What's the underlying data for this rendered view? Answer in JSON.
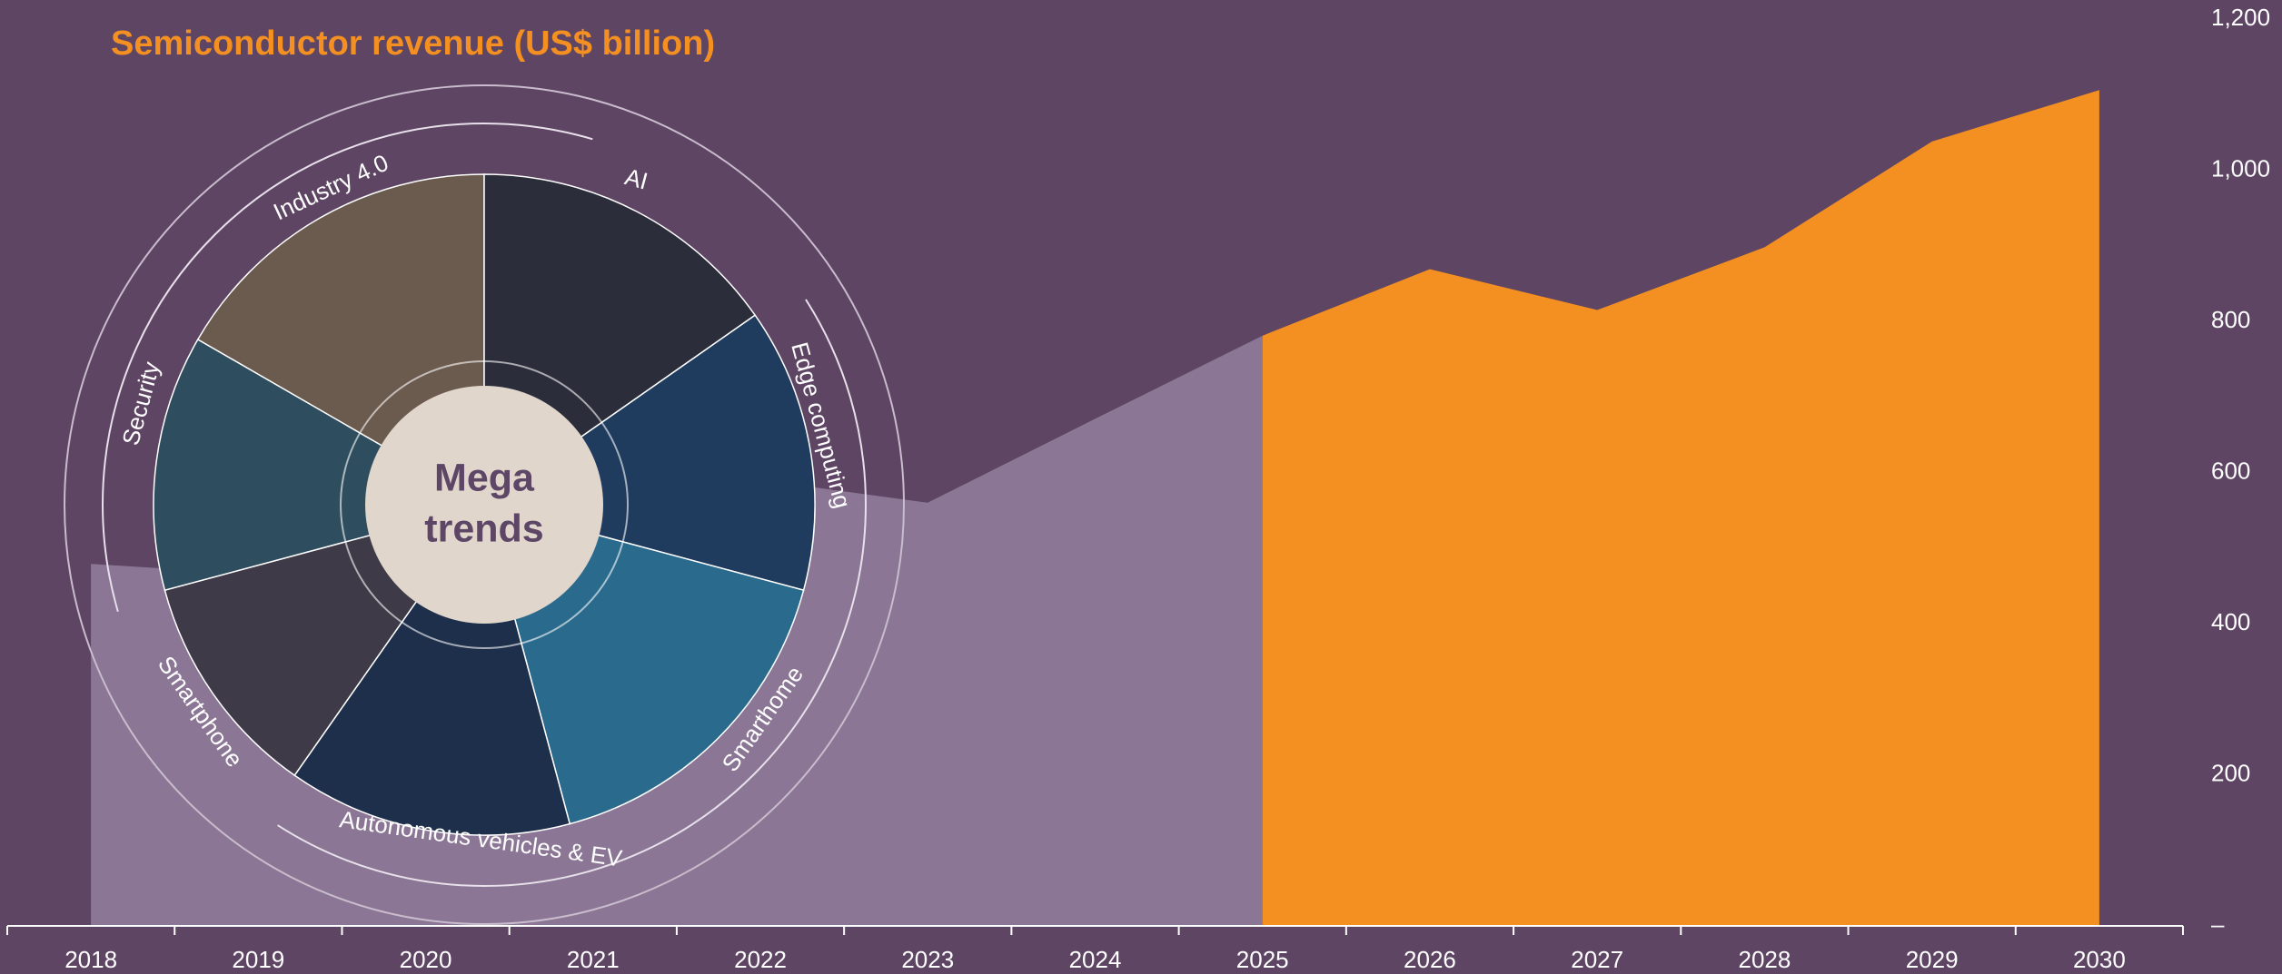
{
  "chart_data": {
    "type": "area",
    "title": "Semiconductor revenue (US$ billion)",
    "categories": [
      "2018",
      "2019",
      "2020",
      "2021",
      "2022",
      "2023",
      "2024",
      "2025",
      "2026",
      "2027",
      "2028",
      "2029",
      "2030"
    ],
    "series": [
      {
        "color": "#8b7795",
        "values": [
          479,
          465,
          440,
          556,
          590,
          560,
          671,
          781,
          null,
          null,
          null,
          null,
          null
        ]
      },
      {
        "color": "#f39021",
        "values": [
          null,
          null,
          null,
          null,
          null,
          null,
          null,
          781,
          869,
          815,
          898,
          1038,
          1106
        ]
      }
    ],
    "ylim": [
      0,
      1200
    ],
    "yticks": [
      {
        "value": 0,
        "label": "–"
      },
      {
        "value": 200,
        "label": "200"
      },
      {
        "value": 400,
        "label": "400"
      },
      {
        "value": 600,
        "label": "600"
      },
      {
        "value": 800,
        "label": "800"
      },
      {
        "value": 1000,
        "label": "1,000"
      },
      {
        "value": 1200,
        "label": "1,200"
      }
    ],
    "grid": false
  },
  "overlay": {
    "center": [
      "Mega",
      "trends"
    ],
    "trends": [
      "Industry 4.0",
      "AI",
      "Edge computing",
      "Smarthome",
      "Autonomous vehicles & EV",
      "Smartphone",
      "Security"
    ]
  }
}
